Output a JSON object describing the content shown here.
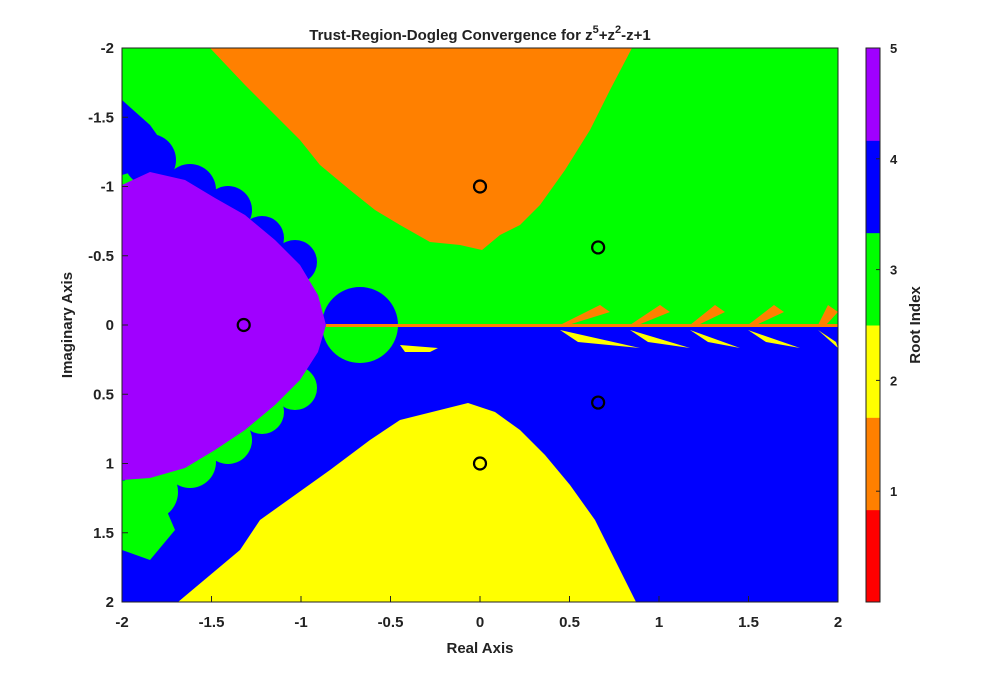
{
  "chart_data": {
    "type": "basin",
    "title": [
      "Trust-Region-Dogleg Convergence for z",
      "5",
      "+z",
      "2",
      "-z+1"
    ],
    "xlabel": "Real Axis",
    "ylabel": "Imaginary Axis",
    "xlim": [
      -2,
      2
    ],
    "ylim": [
      -2,
      2
    ],
    "y_reversed": true,
    "xticks": [
      -2,
      -1.5,
      -1,
      -0.5,
      0,
      0.5,
      1,
      1.5,
      2
    ],
    "yticks": [
      -2,
      -1.5,
      -1,
      -0.5,
      0,
      0.5,
      1,
      1.5,
      2
    ],
    "roots": {
      "x": [
        -1.32,
        0,
        0,
        0.66,
        0.66
      ],
      "y": [
        0,
        -1,
        1,
        -0.56,
        0.56
      ],
      "color": "#000000"
    },
    "colorbar": {
      "label": "Root Index",
      "lim": [
        0,
        5
      ],
      "ticks": [
        1,
        2,
        3,
        4,
        5
      ],
      "colors": [
        "#ff0000",
        "#ff8000",
        "#ffff00",
        "#00ff00",
        "#0000ff",
        "#a000ff"
      ]
    }
  }
}
